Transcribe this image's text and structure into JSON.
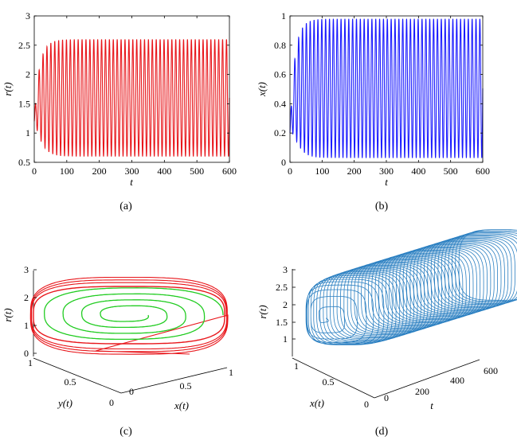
{
  "chart_data": [
    {
      "id": "a",
      "type": "line",
      "caption": "(a)",
      "xlabel": "t",
      "ylabel": "r(t)",
      "xlim": [
        0,
        600
      ],
      "ylim": [
        0.5,
        3
      ],
      "xticks": [
        0,
        100,
        200,
        300,
        400,
        500,
        600
      ],
      "yticks": [
        0.5,
        1,
        1.5,
        2,
        2.5,
        3
      ],
      "xtick_labels": [
        "0",
        "100",
        "200",
        "300",
        "400",
        "500",
        "600"
      ],
      "ytick_labels": [
        "0.5",
        "1",
        "1.5",
        "2",
        "2.5",
        "3"
      ],
      "grid": false,
      "series": [
        {
          "color": "#e8161b",
          "oscillation_cycles": 50,
          "steady_min": 0.6,
          "steady_max": 2.6,
          "initial_value": 1.2
        }
      ]
    },
    {
      "id": "b",
      "type": "line",
      "caption": "(b)",
      "xlabel": "t",
      "ylabel": "x(t)",
      "xlim": [
        0,
        600
      ],
      "ylim": [
        0,
        1
      ],
      "xticks": [
        0,
        100,
        200,
        300,
        400,
        500,
        600
      ],
      "yticks": [
        0,
        0.2,
        0.4,
        0.6,
        0.8,
        1
      ],
      "xtick_labels": [
        "0",
        "100",
        "200",
        "300",
        "400",
        "500",
        "600"
      ],
      "ytick_labels": [
        "0",
        "0.2",
        "0.4",
        "0.6",
        "0.8",
        "1"
      ],
      "grid": false,
      "series": [
        {
          "color": "#1a1aff",
          "oscillation_cycles": 50,
          "steady_min": 0.03,
          "steady_max": 0.98,
          "initial_value": 0.2
        }
      ]
    },
    {
      "id": "c",
      "type": "line3d",
      "caption": "(c)",
      "xlabel": "x(t)",
      "ylabel": "y(t)",
      "zlabel": "r(t)",
      "xticks": [
        "0",
        "0.5",
        "1"
      ],
      "yticks": [
        "0",
        "0.5",
        "1"
      ],
      "zticks": [
        "0",
        "1",
        "2",
        "3"
      ],
      "series": [
        {
          "color": "#e8161b",
          "role": "trajectory spiralling in to the limit cycle"
        },
        {
          "color": "#22cc22",
          "role": "trajectory spiralling out to the limit cycle"
        }
      ]
    },
    {
      "id": "d",
      "type": "line3d",
      "caption": "(d)",
      "xlabel": "t",
      "ylabel": "x(t)",
      "zlabel": "r(t)",
      "tticks": [
        "0",
        "200",
        "400",
        "600"
      ],
      "xticks": [
        "0",
        "0.5",
        "1"
      ],
      "zticks": [
        "1",
        "1.5",
        "2",
        "2.5",
        "3"
      ],
      "series": [
        {
          "color": "#2a7fc1",
          "oscillation_cycles": 50
        }
      ]
    }
  ]
}
